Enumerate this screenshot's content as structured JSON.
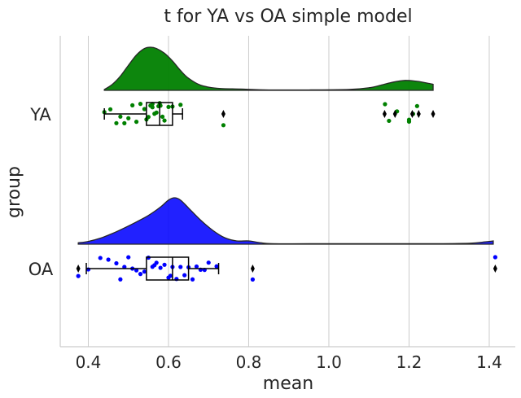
{
  "chart_data": {
    "type": "raincloud",
    "title": "t for YA vs OA simple model",
    "xlabel": "mean",
    "ylabel": "group",
    "xlim": [
      0.33,
      1.465
    ],
    "xticks": [
      0.4,
      0.6,
      0.8,
      1.0,
      1.2,
      1.4
    ],
    "xtick_labels": [
      "0.4",
      "0.6",
      "0.8",
      "1.0",
      "1.2",
      "1.4"
    ],
    "categories": [
      "YA",
      "OA"
    ],
    "grid": "vertical",
    "groups": [
      {
        "name": "YA",
        "color": "#008000",
        "density": {
          "x": [
            0.44,
            0.46,
            0.48,
            0.5,
            0.52,
            0.54,
            0.555,
            0.57,
            0.59,
            0.61,
            0.63,
            0.65,
            0.68,
            0.72,
            0.78,
            0.85,
            0.95,
            1.05,
            1.1,
            1.13,
            1.16,
            1.19,
            1.22,
            1.25,
            1.26
          ],
          "y": [
            0.02,
            0.14,
            0.33,
            0.58,
            0.82,
            0.97,
            1.0,
            0.97,
            0.86,
            0.68,
            0.46,
            0.28,
            0.12,
            0.05,
            0.03,
            0.01,
            0.01,
            0.02,
            0.06,
            0.12,
            0.19,
            0.23,
            0.21,
            0.16,
            0.14
          ]
        },
        "box": {
          "whisker_low": 0.44,
          "q1": 0.545,
          "median": 0.578,
          "q3": 0.61,
          "whisker_high": 0.635
        },
        "outliers": [
          0.737,
          1.139,
          1.165,
          1.208,
          1.224,
          1.26
        ],
        "points": [
          0.44,
          0.455,
          0.47,
          0.48,
          0.49,
          0.5,
          0.51,
          0.52,
          0.53,
          0.54,
          0.545,
          0.55,
          0.555,
          0.56,
          0.56,
          0.565,
          0.57,
          0.575,
          0.578,
          0.58,
          0.585,
          0.59,
          0.6,
          0.61,
          0.63,
          0.737,
          1.14,
          1.15,
          1.17,
          1.2,
          1.2,
          1.21,
          1.22
        ]
      },
      {
        "name": "OA",
        "color": "#0000ff",
        "density": {
          "x": [
            0.375,
            0.4,
            0.43,
            0.46,
            0.49,
            0.52,
            0.55,
            0.58,
            0.6,
            0.615,
            0.63,
            0.65,
            0.68,
            0.71,
            0.74,
            0.77,
            0.8,
            0.83,
            0.86,
            0.95,
            1.1,
            1.25,
            1.35,
            1.39,
            1.41
          ],
          "y": [
            0.03,
            0.06,
            0.13,
            0.23,
            0.35,
            0.48,
            0.62,
            0.8,
            0.95,
            1.0,
            0.95,
            0.78,
            0.52,
            0.3,
            0.14,
            0.07,
            0.07,
            0.03,
            0.01,
            0.01,
            0.01,
            0.01,
            0.02,
            0.05,
            0.07
          ]
        },
        "box": {
          "whisker_low": 0.395,
          "q1": 0.545,
          "median": 0.61,
          "q3": 0.65,
          "whisker_high": 0.725
        },
        "outliers": [
          0.375,
          0.81,
          1.415
        ],
        "points": [
          0.375,
          0.4,
          0.43,
          0.45,
          0.47,
          0.48,
          0.49,
          0.5,
          0.51,
          0.52,
          0.53,
          0.54,
          0.55,
          0.56,
          0.565,
          0.57,
          0.58,
          0.59,
          0.6,
          0.605,
          0.61,
          0.62,
          0.63,
          0.64,
          0.65,
          0.66,
          0.67,
          0.68,
          0.69,
          0.7,
          0.72,
          0.81,
          1.415
        ]
      }
    ]
  }
}
